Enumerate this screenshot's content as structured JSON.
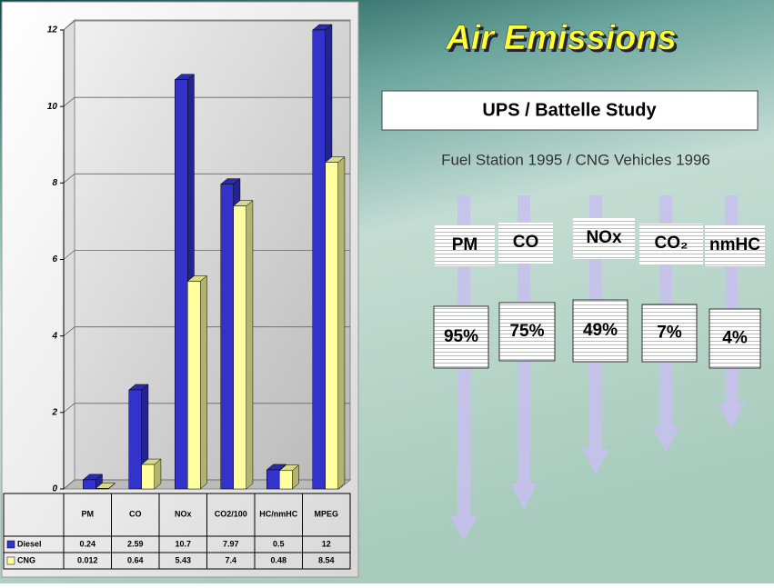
{
  "chart_data": {
    "type": "bar3d",
    "categories": [
      "PM",
      "CO",
      "NOx",
      "CO2/100",
      "HC/nmHC",
      "MPEG"
    ],
    "series": [
      {
        "name": "Diesel",
        "color": "#3333cc",
        "values": [
          0.24,
          2.59,
          10.7,
          7.97,
          0.5,
          12
        ]
      },
      {
        "name": "CNG",
        "color": "#ffffa0",
        "values": [
          0.012,
          0.64,
          5.43,
          7.4,
          0.48,
          8.54
        ]
      }
    ],
    "ylim": [
      0,
      12
    ],
    "yticks": [
      0,
      2,
      4,
      6,
      8,
      10,
      12
    ],
    "grid": true
  },
  "slide": {
    "title": "Air Emissions",
    "study": "UPS / Battelle Study",
    "subtitle": "Fuel Station 1995 / CNG Vehicles 1996",
    "pollutants": [
      "PM",
      "CO",
      "NOx",
      "CO₂",
      "nmHC"
    ],
    "reductions": [
      "95%",
      "75%",
      "49%",
      "7%",
      "4%"
    ]
  }
}
